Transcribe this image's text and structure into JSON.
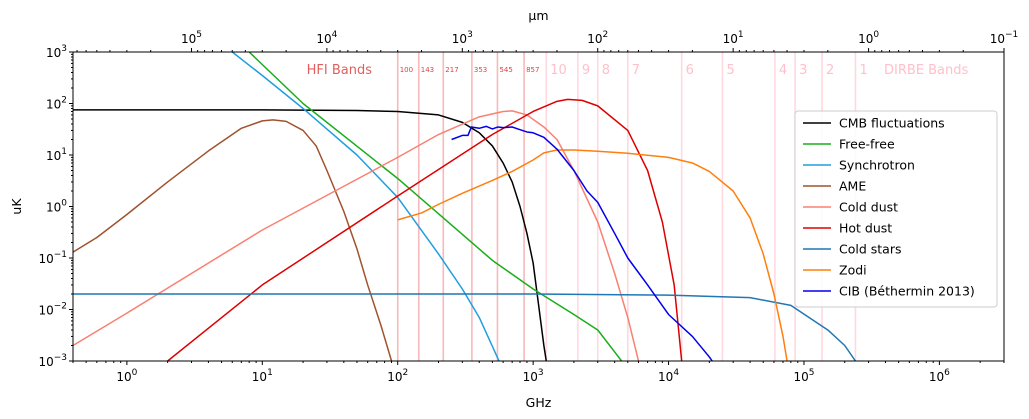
{
  "chart_data": {
    "type": "line",
    "xlabel": "GHz",
    "ylabel": "uK",
    "top_xlabel": "µm",
    "xscale": "log",
    "yscale": "log",
    "xlim": [
      0.4,
      3000000
    ],
    "ylim": [
      0.001,
      1000
    ],
    "top_xlim_um": [
      749500,
      0.1
    ],
    "grid": false,
    "legend_position": "center-right",
    "x_tick_labels": [
      {
        "exp": 0,
        "text": "10",
        "sup": "0"
      },
      {
        "exp": 1,
        "text": "10",
        "sup": "1"
      },
      {
        "exp": 2,
        "text": "10",
        "sup": "2"
      },
      {
        "exp": 3,
        "text": "10",
        "sup": "3"
      },
      {
        "exp": 4,
        "text": "10",
        "sup": "4"
      },
      {
        "exp": 5,
        "text": "10",
        "sup": "5"
      },
      {
        "exp": 6,
        "text": "10",
        "sup": "6"
      }
    ],
    "top_x_tick_labels": [
      {
        "exp": 5,
        "text": "10",
        "sup": "5"
      },
      {
        "exp": 4,
        "text": "10",
        "sup": "4"
      },
      {
        "exp": 3,
        "text": "10",
        "sup": "3"
      },
      {
        "exp": 2,
        "text": "10",
        "sup": "2"
      },
      {
        "exp": 1,
        "text": "10",
        "sup": "1"
      },
      {
        "exp": 0,
        "text": "10",
        "sup": "0"
      },
      {
        "exp": -1,
        "text": "10",
        "sup": "−1"
      }
    ],
    "y_tick_labels": [
      {
        "exp": -3,
        "text": "10",
        "sup": "−3"
      },
      {
        "exp": -2,
        "text": "10",
        "sup": "−2"
      },
      {
        "exp": -1,
        "text": "10",
        "sup": "−1"
      },
      {
        "exp": 0,
        "text": "10",
        "sup": "0"
      },
      {
        "exp": 1,
        "text": "10",
        "sup": "1"
      },
      {
        "exp": 2,
        "text": "10",
        "sup": "2"
      },
      {
        "exp": 3,
        "text": "10",
        "sup": "3"
      }
    ],
    "hfi_bands": {
      "title": "HFI Bands",
      "color": "#f08080",
      "text_color": "#e04040",
      "bands": [
        {
          "label": "100",
          "x": 100
        },
        {
          "label": "143",
          "x": 143
        },
        {
          "label": "217",
          "x": 217
        },
        {
          "label": "353",
          "x": 353
        },
        {
          "label": "545",
          "x": 545
        },
        {
          "label": "857",
          "x": 857
        }
      ]
    },
    "dirbe_bands": {
      "title": "DIRBE Bands",
      "color": "#ffc0cb",
      "bands": [
        {
          "label": "10",
          "x": 1250
        },
        {
          "label": "9",
          "x": 2140
        },
        {
          "label": "8",
          "x": 3000
        },
        {
          "label": "7",
          "x": 5000
        },
        {
          "label": "6",
          "x": 12500
        },
        {
          "label": "5",
          "x": 25000
        },
        {
          "label": "4",
          "x": 61000
        },
        {
          "label": "3",
          "x": 86000
        },
        {
          "label": "2",
          "x": 136000
        },
        {
          "label": "1",
          "x": 240000
        }
      ]
    },
    "series": [
      {
        "name": "CMB fluctuations",
        "color": "#000000",
        "points": [
          [
            0.4,
            75
          ],
          [
            10,
            75
          ],
          [
            50,
            73
          ],
          [
            100,
            70
          ],
          [
            200,
            60
          ],
          [
            300,
            43
          ],
          [
            400,
            27
          ],
          [
            500,
            15
          ],
          [
            600,
            7
          ],
          [
            700,
            3
          ],
          [
            800,
            1
          ],
          [
            900,
            0.3
          ],
          [
            1000,
            0.08
          ],
          [
            1200,
            0.002
          ],
          [
            1250,
            0.001
          ]
        ]
      },
      {
        "name": "Free-free",
        "color": "#1aad1a",
        "points": [
          [
            8,
            1000
          ],
          [
            20,
            100
          ],
          [
            100,
            3.5
          ],
          [
            500,
            0.09
          ],
          [
            1000,
            0.025
          ],
          [
            2000,
            0.008
          ],
          [
            3000,
            0.004
          ],
          [
            4000,
            0.0015
          ],
          [
            4500,
            0.001
          ]
        ]
      },
      {
        "name": "Synchrotron",
        "color": "#1f9ee0",
        "points": [
          [
            6,
            1000
          ],
          [
            10,
            350
          ],
          [
            20,
            80
          ],
          [
            50,
            10
          ],
          [
            100,
            1.5
          ],
          [
            200,
            0.12
          ],
          [
            300,
            0.025
          ],
          [
            400,
            0.007
          ],
          [
            560,
            0.001
          ]
        ]
      },
      {
        "name": "AME",
        "color": "#a0522d",
        "points": [
          [
            0.4,
            0.13
          ],
          [
            0.6,
            0.25
          ],
          [
            1,
            0.7
          ],
          [
            2,
            3
          ],
          [
            4,
            12
          ],
          [
            7,
            33
          ],
          [
            10,
            46
          ],
          [
            12,
            48
          ],
          [
            15,
            45
          ],
          [
            20,
            30
          ],
          [
            25,
            15
          ],
          [
            30,
            5
          ],
          [
            40,
            0.8
          ],
          [
            50,
            0.15
          ],
          [
            60,
            0.03
          ],
          [
            75,
            0.005
          ],
          [
            90,
            0.001
          ]
        ]
      },
      {
        "name": "Cold dust",
        "color": "#fa8072",
        "points": [
          [
            0.4,
            0.002
          ],
          [
            1,
            0.0085
          ],
          [
            10,
            0.35
          ],
          [
            100,
            9
          ],
          [
            200,
            25
          ],
          [
            400,
            55
          ],
          [
            600,
            70
          ],
          [
            700,
            72
          ],
          [
            900,
            60
          ],
          [
            1200,
            35
          ],
          [
            1500,
            20
          ],
          [
            2000,
            5
          ],
          [
            3000,
            0.5
          ],
          [
            4000,
            0.05
          ],
          [
            5000,
            0.007
          ],
          [
            6000,
            0.001
          ]
        ]
      },
      {
        "name": "Hot dust",
        "color": "#dd0000",
        "points": [
          [
            2,
            0.001
          ],
          [
            10,
            0.03
          ],
          [
            100,
            1.6
          ],
          [
            500,
            25
          ],
          [
            1000,
            70
          ],
          [
            1500,
            110
          ],
          [
            1800,
            120
          ],
          [
            2300,
            115
          ],
          [
            3000,
            90
          ],
          [
            5000,
            30
          ],
          [
            7000,
            5
          ],
          [
            9000,
            0.5
          ],
          [
            11000,
            0.03
          ],
          [
            12500,
            0.001
          ]
        ]
      },
      {
        "name": "Cold stars",
        "color": "#1f77b4",
        "points": [
          [
            0.4,
            0.02
          ],
          [
            1000,
            0.02
          ],
          [
            10000,
            0.019
          ],
          [
            40000,
            0.017
          ],
          [
            80000,
            0.012
          ],
          [
            150000,
            0.004
          ],
          [
            200000,
            0.002
          ],
          [
            240000,
            0.001
          ]
        ]
      },
      {
        "name": "Zodi",
        "color": "#ff7f0e",
        "points": [
          [
            100,
            0.55
          ],
          [
            150,
            0.75
          ],
          [
            200,
            1.1
          ],
          [
            300,
            1.8
          ],
          [
            500,
            3.2
          ],
          [
            700,
            4.8
          ],
          [
            1000,
            8
          ],
          [
            1200,
            11
          ],
          [
            1500,
            12.5
          ],
          [
            2000,
            12.5
          ],
          [
            3000,
            11.8
          ],
          [
            5000,
            10.8
          ],
          [
            10000,
            9
          ],
          [
            15000,
            7
          ],
          [
            20000,
            4.8
          ],
          [
            30000,
            2
          ],
          [
            40000,
            0.6
          ],
          [
            50000,
            0.12
          ],
          [
            60000,
            0.02
          ],
          [
            70000,
            0.003
          ],
          [
            75000,
            0.001
          ]
        ]
      },
      {
        "name": "CIB (Béthermin 2013)",
        "color": "#0000ee",
        "points": [
          [
            250,
            20
          ],
          [
            300,
            24
          ],
          [
            330,
            24
          ],
          [
            350,
            35
          ],
          [
            400,
            33
          ],
          [
            450,
            36
          ],
          [
            500,
            32
          ],
          [
            550,
            35
          ],
          [
            600,
            34
          ],
          [
            700,
            35
          ],
          [
            800,
            31
          ],
          [
            900,
            28
          ],
          [
            1000,
            27
          ],
          [
            1200,
            22
          ],
          [
            1500,
            13
          ],
          [
            2000,
            5
          ],
          [
            2500,
            2
          ],
          [
            3000,
            1.2
          ],
          [
            4000,
            0.3
          ],
          [
            5000,
            0.1
          ],
          [
            7000,
            0.03
          ],
          [
            10000,
            0.008
          ],
          [
            15000,
            0.003
          ],
          [
            20000,
            0.0012
          ],
          [
            21000,
            0.001
          ]
        ]
      }
    ]
  }
}
